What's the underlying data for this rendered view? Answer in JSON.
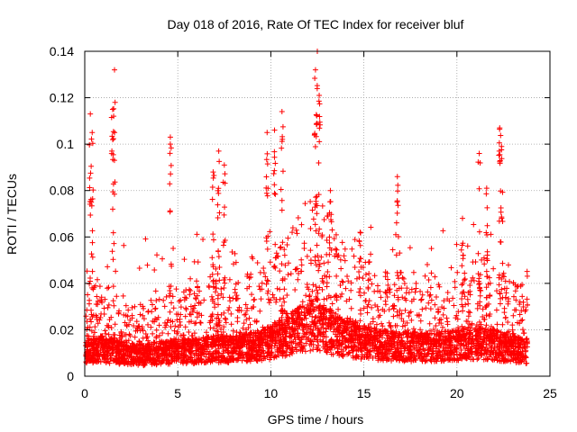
{
  "chart_data": {
    "type": "scatter",
    "title": "Day 018 of 2016, Rate Of TEC Index for receiver bluf",
    "xlabel": "GPS time / hours",
    "ylabel": "ROTI / TECUs",
    "xlim": [
      0,
      25
    ],
    "ylim": [
      0,
      0.14
    ],
    "xticks": [
      0,
      5,
      10,
      15,
      20,
      25
    ],
    "xtick_labels": [
      "0",
      "5",
      "10",
      "15",
      "20",
      "25"
    ],
    "yticks": [
      0,
      0.02,
      0.04,
      0.06,
      0.08,
      0.1,
      0.12,
      0.14
    ],
    "ytick_labels": [
      "0",
      "0.02",
      "0.04",
      "0.06",
      "0.08",
      "0.1",
      "0.12",
      "0.14"
    ],
    "grid": true,
    "marker": "+",
    "color": "#ff0000",
    "series": [
      {
        "name": "ROTI",
        "baseline": {
          "x": [
            0,
            1,
            2,
            3,
            4,
            5,
            6,
            7,
            8,
            9,
            10,
            10.5,
            11,
            12,
            12.5,
            13,
            14,
            15,
            16,
            17,
            18,
            19,
            20,
            21,
            22,
            23,
            23.8
          ],
          "y": [
            0.012,
            0.013,
            0.011,
            0.01,
            0.011,
            0.012,
            0.012,
            0.013,
            0.013,
            0.014,
            0.016,
            0.018,
            0.02,
            0.024,
            0.025,
            0.022,
            0.018,
            0.016,
            0.015,
            0.014,
            0.014,
            0.014,
            0.015,
            0.016,
            0.015,
            0.013,
            0.012
          ]
        },
        "peaks": {
          "x": [
            0.3,
            0.4,
            1.5,
            1.6,
            4.6,
            6.9,
            7.2,
            7.5,
            9.8,
            10.2,
            10.6,
            12.4,
            12.5,
            12.6,
            13.2,
            14.8,
            16.8,
            20.3,
            21.2,
            21.6,
            22.3,
            22.4
          ],
          "y": [
            0.113,
            0.105,
            0.115,
            0.132,
            0.103,
            0.088,
            0.097,
            0.091,
            0.105,
            0.106,
            0.114,
            0.132,
            0.14,
            0.121,
            0.08,
            0.062,
            0.086,
            0.068,
            0.096,
            0.081,
            0.107,
            0.099
          ]
        },
        "point_count": 4200
      }
    ]
  }
}
